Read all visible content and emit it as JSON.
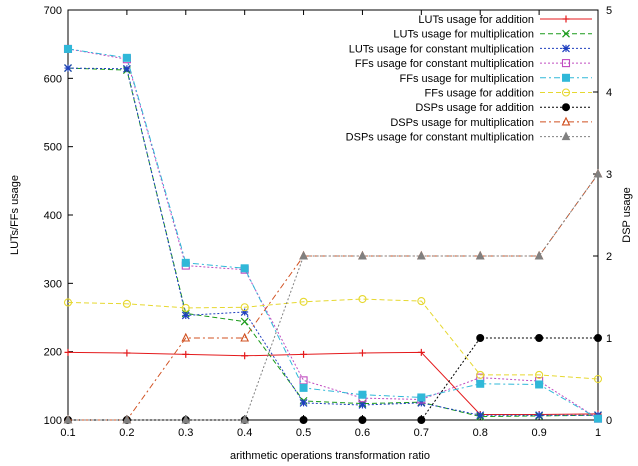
{
  "chart_data": {
    "type": "line",
    "xlabel": "arithmetic operations transformation ratio",
    "ylabel": "LUTs/FFs usage",
    "y2label": "DSP usage",
    "x": [
      0.1,
      0.2,
      0.3,
      0.4,
      0.5,
      0.6,
      0.7,
      0.8,
      0.9,
      1.0
    ],
    "x_ticks": [
      "0.1",
      "0.2",
      "0.3",
      "0.4",
      "0.5",
      "0.6",
      "0.7",
      "0.8",
      "0.9",
      "1"
    ],
    "xlim": [
      0.1,
      1.0
    ],
    "ylim": [
      100,
      700
    ],
    "y_ticks": [
      "100",
      "200",
      "300",
      "400",
      "500",
      "600",
      "700"
    ],
    "y2lim": [
      0,
      5
    ],
    "y2_ticks": [
      "0",
      "1",
      "2",
      "3",
      "4",
      "5"
    ],
    "grid": false,
    "legend_position": "top-right",
    "series": [
      {
        "name": "LUTs usage for addition",
        "axis": "left",
        "color": "#e41a1c",
        "marker": "plus",
        "dash": "solid",
        "values": [
          199,
          198,
          196,
          194,
          196,
          198,
          199,
          108,
          108,
          109
        ]
      },
      {
        "name": "LUTs usage for multiplication",
        "axis": "left",
        "color": "#1a9a1a",
        "marker": "x",
        "dash": "dashed",
        "values": [
          615,
          612,
          256,
          244,
          128,
          124,
          126,
          105,
          106,
          107
        ]
      },
      {
        "name": "LUTs usage for constant multiplication",
        "axis": "left",
        "color": "#1f3fbf",
        "marker": "star",
        "dash": "dotted",
        "values": [
          615,
          614,
          253,
          258,
          125,
          122,
          125,
          107,
          107,
          107
        ]
      },
      {
        "name": "FFs  usage for constant multiplication",
        "axis": "left",
        "color": "#c04cc0",
        "marker": "square",
        "dash": "dotted",
        "values": [
          643,
          628,
          326,
          320,
          158,
          132,
          130,
          162,
          157,
          102
        ]
      },
      {
        "name": "FFs  usage for multiplication",
        "axis": "left",
        "color": "#30b8d8",
        "marker": "filled-square",
        "dash": "dashdot",
        "values": [
          643,
          630,
          330,
          322,
          147,
          137,
          133,
          153,
          152,
          102
        ]
      },
      {
        "name": "FFs  usage for addition",
        "axis": "left",
        "color": "#e6d830",
        "marker": "circle",
        "dash": "dashed",
        "values": [
          272,
          270,
          264,
          265,
          273,
          277,
          274,
          166,
          166,
          160
        ]
      },
      {
        "name": "DSPs usage for addition",
        "axis": "right",
        "color": "#000000",
        "marker": "filled-circle",
        "dash": "dotted",
        "values": [
          0,
          0,
          0,
          0,
          0,
          0,
          0,
          1,
          1,
          1
        ]
      },
      {
        "name": "DSPs usage for multiplication",
        "axis": "right",
        "color": "#d05020",
        "marker": "triangle",
        "dash": "dashdot",
        "values": [
          0,
          0,
          1,
          1,
          2,
          2,
          2,
          2,
          2,
          3
        ]
      },
      {
        "name": "DSPs usage for constant multiplication",
        "axis": "right",
        "color": "#808080",
        "marker": "filled-triangle",
        "dash": "dotted",
        "values": [
          0,
          0,
          0,
          0,
          2,
          2,
          2,
          2,
          2,
          3
        ]
      }
    ]
  }
}
